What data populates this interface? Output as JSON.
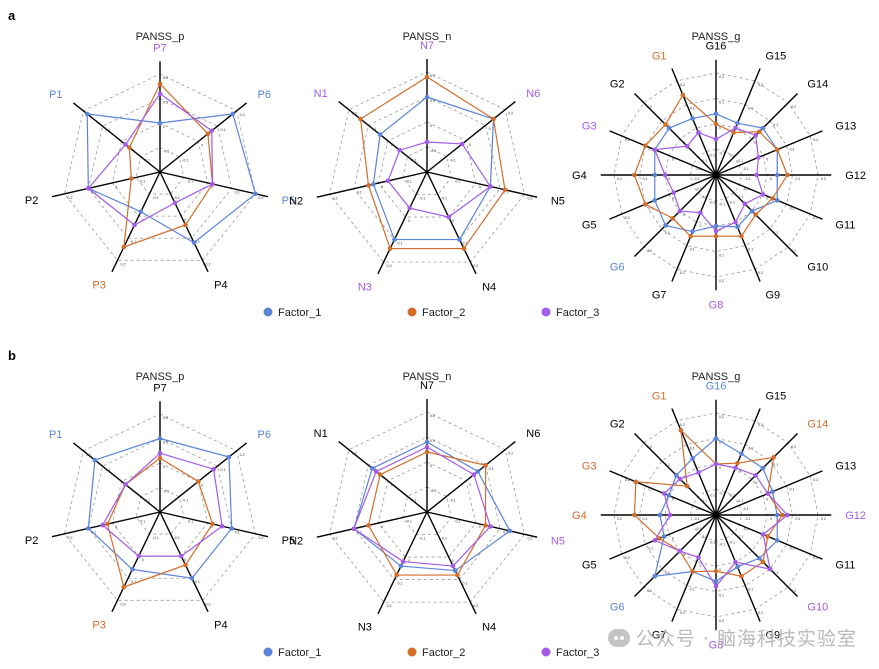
{
  "colors": {
    "Factor_1": "#5b84d9",
    "Factor_2": "#d26e2a",
    "Factor_3": "#a45be8",
    "axis": "#000000",
    "grid": "#9a9a9a"
  },
  "watermark": "公众号 · 脑海科技实验室",
  "tick_labels": [
    "-0.1",
    "0",
    "0.1",
    "0.2"
  ],
  "panels": [
    {
      "panel_label": "a",
      "legend": [
        "Factor_1",
        "Factor_2",
        "Factor_3"
      ],
      "chart_data": [
        {
          "type": "radar",
          "title": "PANSS_p",
          "range": [
            -0.2,
            0.2
          ],
          "axes": [
            "P7",
            "P6",
            "P5",
            "P4",
            "P3",
            "P2",
            "P1"
          ],
          "axis_label_colors": [
            "#a45be8",
            "#5b84d9",
            "#5b84d9",
            "#000000",
            "#d26e2a",
            "#000000",
            "#5b84d9"
          ],
          "series": [
            {
              "name": "Factor_1",
              "values": [
                0.0,
                0.18,
                0.2,
                0.12,
                -0.02,
                0.1,
                0.18
              ]
            },
            {
              "name": "Factor_2",
              "values": [
                0.16,
                0.05,
                0.02,
                0.04,
                0.14,
                -0.08,
                -0.04
              ]
            },
            {
              "name": "Factor_3",
              "values": [
                0.12,
                0.07,
                0.02,
                -0.06,
                0.04,
                0.1,
                -0.02
              ]
            }
          ]
        },
        {
          "type": "radar",
          "title": "PANSS_n",
          "range": [
            -0.2,
            0.2
          ],
          "axes": [
            "N7",
            "N6",
            "N5",
            "N4",
            "N3",
            "N2",
            "N1"
          ],
          "axis_label_colors": [
            "#a45be8",
            "#a45be8",
            "#000000",
            "#000000",
            "#a45be8",
            "#000000",
            "#a45be8"
          ],
          "series": [
            {
              "name": "Factor_1",
              "values": [
                0.1,
                0.14,
                0.06,
                0.1,
                0.1,
                0.02,
                0.04
              ]
            },
            {
              "name": "Factor_2",
              "values": [
                0.18,
                0.14,
                0.12,
                0.14,
                0.14,
                0.04,
                0.14
              ]
            },
            {
              "name": "Factor_3",
              "values": [
                -0.08,
                -0.02,
                0.06,
                0.0,
                -0.04,
                -0.04,
                -0.06
              ]
            }
          ]
        },
        {
          "type": "radar",
          "title": "PANSS_g",
          "range": [
            -0.2,
            0.2
          ],
          "axes": [
            "G16",
            "G15",
            "G14",
            "G13",
            "G12",
            "G11",
            "G10",
            "G9",
            "G8",
            "G7",
            "G6",
            "G5",
            "G4",
            "G3",
            "G2",
            "G1"
          ],
          "axis_label_colors": [
            "#000000",
            "#000000",
            "#000000",
            "#000000",
            "#000000",
            "#000000",
            "#000000",
            "#000000",
            "#a45be8",
            "#000000",
            "#5b84d9",
            "#000000",
            "#000000",
            "#a45be8",
            "#000000",
            "#d26e2a"
          ],
          "series": [
            {
              "name": "Factor_1",
              "values": [
                0.04,
                0.02,
                0.06,
                0.06,
                0.04,
                0.06,
                0.0,
                0.02,
                0.0,
                0.04,
                0.08,
                0.06,
                0.04,
                0.06,
                0.06,
                0.04
              ]
            },
            {
              "name": "Factor_2",
              "values": [
                0.0,
                -0.02,
                0.04,
                0.06,
                0.08,
                0.04,
                0.02,
                0.06,
                0.04,
                0.06,
                0.04,
                0.1,
                0.12,
                0.1,
                0.08,
                0.14
              ]
            },
            {
              "name": "Factor_3",
              "values": [
                -0.06,
                0.0,
                0.02,
                -0.02,
                -0.04,
                0.0,
                -0.04,
                0.0,
                0.02,
                -0.04,
                0.0,
                -0.02,
                0.0,
                0.06,
                -0.04,
                -0.02
              ]
            }
          ]
        }
      ]
    },
    {
      "panel_label": "b",
      "legend": [
        "Factor_1",
        "Factor_2",
        "Factor_3"
      ],
      "chart_data": [
        {
          "type": "radar",
          "title": "PANSS_p",
          "range": [
            -0.2,
            0.2
          ],
          "axes": [
            "P7",
            "P6",
            "P5",
            "P4",
            "P3",
            "P2",
            "P1"
          ],
          "axis_label_colors": [
            "#000000",
            "#5b84d9",
            "#000000",
            "#000000",
            "#d26e2a",
            "#000000",
            "#5b84d9"
          ],
          "series": [
            {
              "name": "Factor_1",
              "values": [
                0.1,
                0.16,
                0.1,
                0.1,
                0.06,
                0.1,
                0.14
              ]
            },
            {
              "name": "Factor_2",
              "values": [
                0.02,
                0.0,
                0.02,
                0.04,
                0.14,
                0.02,
                -0.02
              ]
            },
            {
              "name": "Factor_3",
              "values": [
                0.04,
                0.08,
                0.06,
                0.0,
                0.0,
                0.04,
                -0.02
              ]
            }
          ]
        },
        {
          "type": "radar",
          "title": "PANSS_n",
          "range": [
            -0.2,
            0.2
          ],
          "axes": [
            "N7",
            "N6",
            "N5",
            "N4",
            "N3",
            "N2",
            "N1"
          ],
          "axis_label_colors": [
            "#000000",
            "#000000",
            "#a45be8",
            "#000000",
            "#000000",
            "#000000",
            "#000000"
          ],
          "series": [
            {
              "name": "Factor_1",
              "values": [
                0.08,
                0.06,
                0.14,
                0.06,
                0.04,
                0.1,
                0.08
              ]
            },
            {
              "name": "Factor_2",
              "values": [
                0.04,
                0.1,
                0.04,
                0.08,
                0.08,
                0.04,
                0.04
              ]
            },
            {
              "name": "Factor_3",
              "values": [
                0.06,
                0.04,
                0.06,
                0.04,
                0.02,
                0.1,
                0.06
              ]
            }
          ]
        },
        {
          "type": "radar",
          "title": "PANSS_g",
          "range": [
            -0.2,
            0.2
          ],
          "axes": [
            "G16",
            "G15",
            "G14",
            "G13",
            "G12",
            "G11",
            "G10",
            "G9",
            "G8",
            "G7",
            "G6",
            "G5",
            "G4",
            "G3",
            "G2",
            "G1"
          ],
          "axis_label_colors": [
            "#5b84d9",
            "#000000",
            "#d26e2a",
            "#000000",
            "#a45be8",
            "#000000",
            "#a45be8",
            "#000000",
            "#a45be8",
            "#000000",
            "#5b84d9",
            "#000000",
            "#d26e2a",
            "#d26e2a",
            "#000000",
            "#d26e2a"
          ],
          "series": [
            {
              "name": "Factor_1",
              "values": [
                0.1,
                0.06,
                0.06,
                0.04,
                0.04,
                0.06,
                0.04,
                0.02,
                0.06,
                0.04,
                0.14,
                0.02,
                0.02,
                0.0,
                0.02,
                0.04
              ]
            },
            {
              "name": "Factor_2",
              "values": [
                0.0,
                0.02,
                0.12,
                0.02,
                0.06,
                0.02,
                0.06,
                0.06,
                0.02,
                0.04,
                0.0,
                0.04,
                0.12,
                0.14,
                -0.04,
                0.16
              ]
            },
            {
              "name": "Factor_3",
              "values": [
                0.0,
                0.0,
                0.02,
                0.02,
                0.08,
                0.0,
                0.1,
                0.0,
                0.08,
                -0.02,
                0.0,
                0.06,
                -0.02,
                0.02,
                0.0,
                -0.02
              ]
            }
          ]
        }
      ]
    }
  ]
}
